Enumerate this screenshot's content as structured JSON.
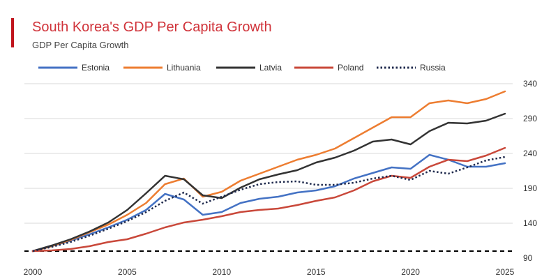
{
  "chart_data": {
    "type": "line",
    "title": "South Korea's GDP Per Capita Growth",
    "subtitle": "GDP Per Capita Growth",
    "xlabel": "",
    "ylabel": "",
    "x": [
      2000,
      2001,
      2002,
      2003,
      2004,
      2005,
      2006,
      2007,
      2008,
      2009,
      2010,
      2011,
      2012,
      2013,
      2014,
      2015,
      2016,
      2017,
      2018,
      2019,
      2020,
      2021,
      2022,
      2023,
      2024,
      2025
    ],
    "xlim": [
      2000,
      2025
    ],
    "ylim": [
      90,
      340
    ],
    "x_ticks": [
      "2000",
      "2005",
      "2010",
      "2015",
      "2020",
      "2025"
    ],
    "y_ticks": [
      "340",
      "290",
      "240",
      "190",
      "140",
      "90"
    ],
    "baseline": 100,
    "grid": "horizontal",
    "legend_position": "top",
    "series": [
      {
        "name": "Estonia",
        "color": "#4472c4",
        "style": "solid",
        "values": [
          100,
          107,
          115,
          124,
          134,
          145,
          159,
          182,
          174,
          152,
          156,
          169,
          175,
          178,
          184,
          187,
          193,
          204,
          212,
          220,
          218,
          238,
          231,
          221,
          221,
          226
        ]
      },
      {
        "name": "Lithuania",
        "color": "#ed7d31",
        "style": "solid",
        "values": [
          100,
          107,
          116,
          127,
          138,
          152,
          169,
          196,
          204,
          178,
          185,
          201,
          211,
          221,
          231,
          238,
          247,
          262,
          277,
          292,
          292,
          312,
          316,
          312,
          318,
          329
        ]
      },
      {
        "name": "Latvia",
        "color": "#333333",
        "style": "solid",
        "values": [
          100,
          108,
          117,
          128,
          141,
          159,
          183,
          208,
          203,
          180,
          176,
          191,
          203,
          210,
          216,
          227,
          234,
          244,
          257,
          260,
          253,
          272,
          284,
          283,
          287,
          297
        ]
      },
      {
        "name": "Poland",
        "color": "#c9483a",
        "style": "solid",
        "values": [
          100,
          101,
          103,
          107,
          113,
          117,
          125,
          134,
          141,
          145,
          150,
          156,
          159,
          161,
          166,
          172,
          177,
          187,
          200,
          208,
          205,
          221,
          231,
          229,
          237,
          248
        ]
      },
      {
        "name": "Russia",
        "color": "#1f2a4d",
        "style": "dotted",
        "values": [
          100,
          106,
          113,
          122,
          132,
          143,
          156,
          172,
          184,
          168,
          178,
          188,
          196,
          199,
          200,
          195,
          195,
          198,
          204,
          208,
          202,
          215,
          211,
          220,
          230,
          235
        ]
      }
    ]
  }
}
